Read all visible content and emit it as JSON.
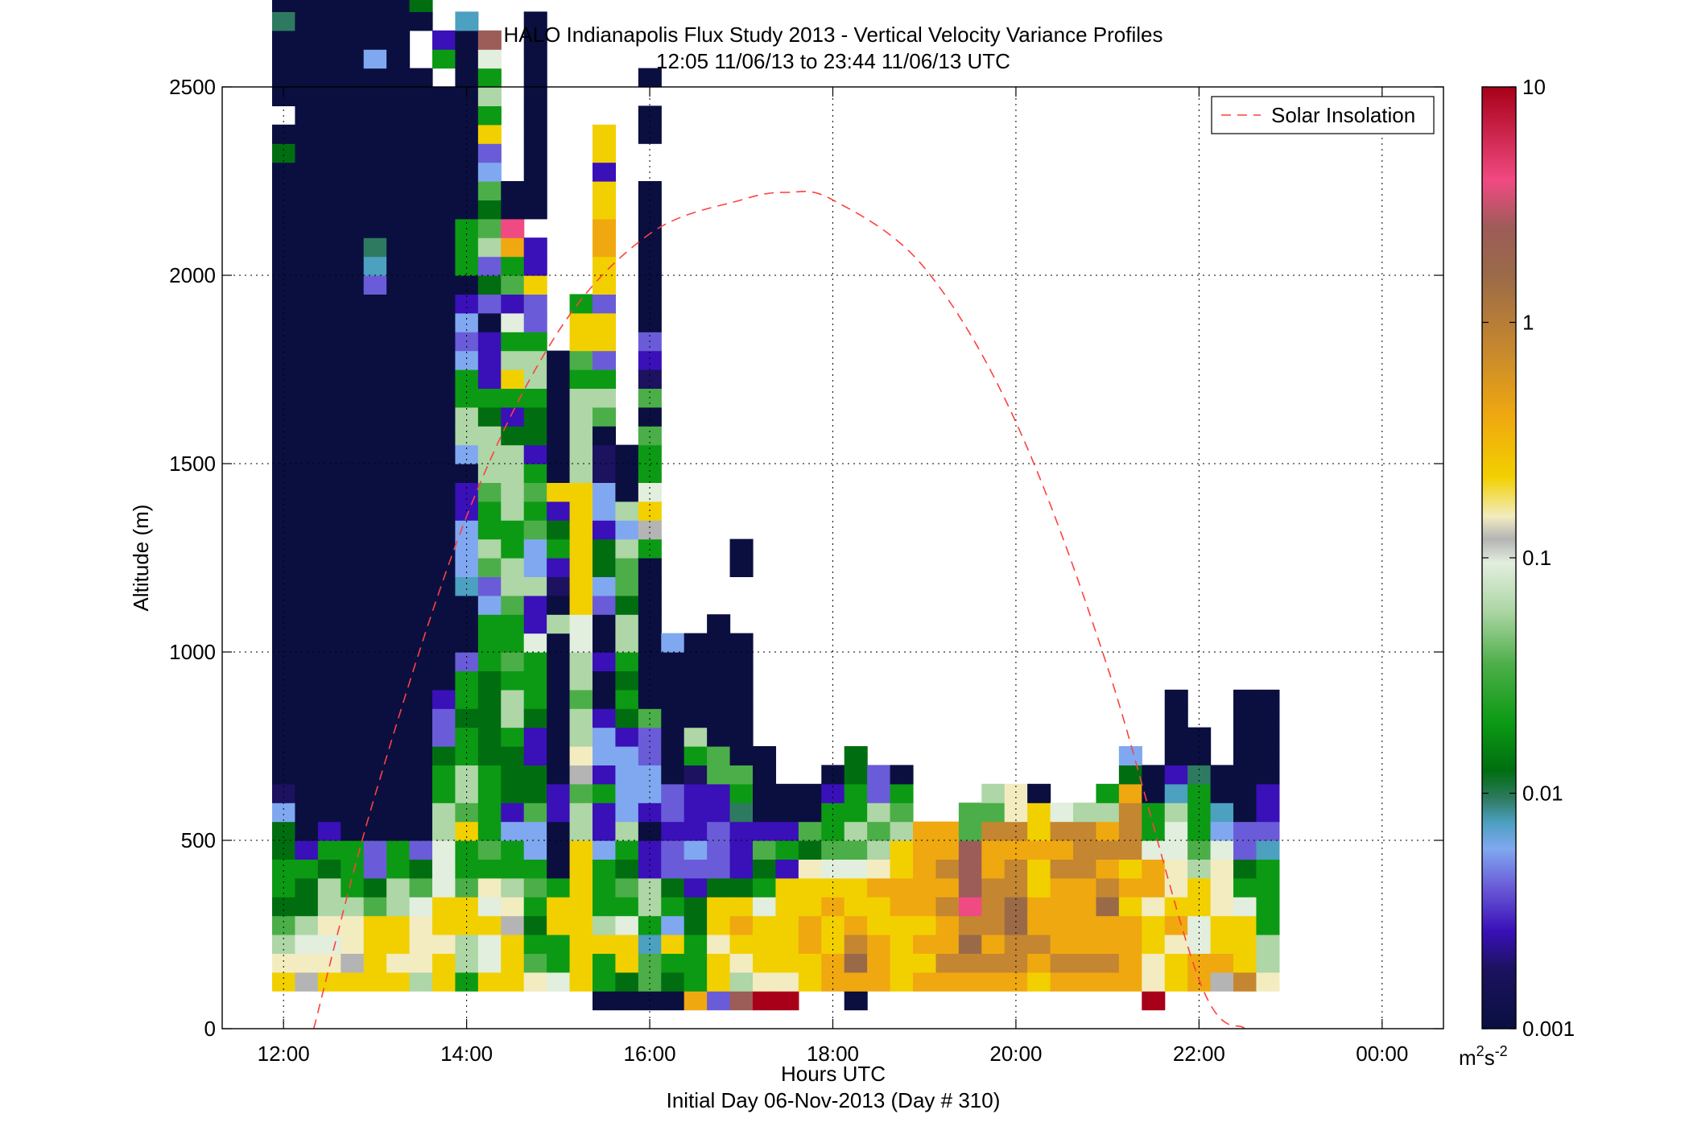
{
  "chart_data": {
    "type": "heatmap",
    "title": "HALO Indianapolis Flux Study 2013 - Vertical Velocity Variance Profiles",
    "subtitle": "12:05 11/06/13 to 23:44 11/06/13  UTC",
    "xlabel": "Hours UTC",
    "xlabel_sub": "Initial Day 06-Nov-2013 (Day # 310)",
    "ylabel": "Altitude (m)",
    "x_range_hours": [
      11.33,
      24.67
    ],
    "ylim": [
      0,
      2500
    ],
    "x_ticks": [
      {
        "v": 12,
        "label": "12:00"
      },
      {
        "v": 14,
        "label": "14:00"
      },
      {
        "v": 16,
        "label": "16:00"
      },
      {
        "v": 18,
        "label": "18:00"
      },
      {
        "v": 20,
        "label": "20:00"
      },
      {
        "v": 22,
        "label": "22:00"
      },
      {
        "v": 24,
        "label": "00:00"
      }
    ],
    "y_ticks": [
      {
        "v": 0,
        "label": "0"
      },
      {
        "v": 500,
        "label": "500"
      },
      {
        "v": 1000,
        "label": "1000"
      },
      {
        "v": 1500,
        "label": "1500"
      },
      {
        "v": 2000,
        "label": "2000"
      },
      {
        "v": 2500,
        "label": "2500"
      }
    ],
    "grid": true,
    "legend": {
      "placement": "top-right",
      "entries": [
        {
          "label": "Solar Insolation",
          "color": "#ff4040",
          "style": "dashed"
        }
      ]
    },
    "colorbar": {
      "scale": "log",
      "range": [
        0.001,
        10
      ],
      "ticks": [
        {
          "v": 0.001,
          "label": "0.001"
        },
        {
          "v": 0.01,
          "label": "0.01"
        },
        {
          "v": 0.1,
          "label": "0.1"
        },
        {
          "v": 1,
          "label": "1"
        },
        {
          "v": 10,
          "label": "10"
        }
      ],
      "unit_base": "m",
      "unit_sup1": "2",
      "unit_mid": "s",
      "unit_sup2": "-2",
      "stops": [
        {
          "v": 0.001,
          "color": "#0a0f40"
        },
        {
          "v": 0.0018,
          "color": "#1c1260"
        },
        {
          "v": 0.0026,
          "color": "#3a10b8"
        },
        {
          "v": 0.004,
          "color": "#6a5cd8"
        },
        {
          "v": 0.0058,
          "color": "#80a8f0"
        },
        {
          "v": 0.0075,
          "color": "#4ca0c0"
        },
        {
          "v": 0.0095,
          "color": "#2e7a60"
        },
        {
          "v": 0.0125,
          "color": "#006e10"
        },
        {
          "v": 0.02,
          "color": "#0c9a14"
        },
        {
          "v": 0.035,
          "color": "#4cae48"
        },
        {
          "v": 0.06,
          "color": "#aed6a6"
        },
        {
          "v": 0.095,
          "color": "#e2eede"
        },
        {
          "v": 0.12,
          "color": "#b4b4b4"
        },
        {
          "v": 0.15,
          "color": "#f2ecc0"
        },
        {
          "v": 0.22,
          "color": "#f2d000"
        },
        {
          "v": 0.4,
          "color": "#f0a810"
        },
        {
          "v": 0.8,
          "color": "#c48630"
        },
        {
          "v": 1.6,
          "color": "#9a6a48"
        },
        {
          "v": 2.5,
          "color": "#9c5c58"
        },
        {
          "v": 4,
          "color": "#f04a82"
        },
        {
          "v": 10,
          "color": "#a80018"
        }
      ]
    },
    "solar_insolation": {
      "name": "Solar Insolation",
      "x": [
        12.33,
        13.0,
        14.0,
        15.0,
        16.0,
        17.0,
        17.5,
        18.0,
        19.0,
        20.0,
        21.0,
        22.0,
        22.5
      ],
      "y": [
        0,
        620,
        1360,
        1850,
        2110,
        2200,
        2220,
        2200,
        2020,
        1610,
        960,
        130,
        0
      ]
    },
    "cell_height_m": 50,
    "palette": {
      "N": 0.001,
      "D": 0.0018,
      "P": 0.0026,
      "V": 0.004,
      "L": 0.0058,
      "C": 0.0075,
      "T": 0.0095,
      "E": 0.0125,
      "G": 0.02,
      "M": 0.035,
      "S": 0.06,
      "W": 0.095,
      "A": 0.12,
      "Q": 0.15,
      "Y": 0.22,
      "O": 0.4,
      "K": 0.8,
      "B": 1.6,
      "R": 2.5,
      "H": 4,
      "Z": 10
    },
    "series": [
      {
        "t": 12.0,
        "base": 100,
        "cells": "YQSMEGGEELDNNNNNNNNNNNNNNNNNNNNNNNNNNNNNNNNNEN.NNNNTNN"
      },
      {
        "t": 12.25,
        "base": 100,
        "cells": "AQWSEEGPNNNNNNNNNNNNNNNNNNNNNNNNNNNNNNNNNNNNNNNNNNNNNNNN"
      },
      {
        "t": 12.5,
        "base": 100,
        "cells": "YQWQSSEGPNNNNNNNNNNNNNNNNNNNNNNNNNNNNNNNNNNNNNNNNNNNNNNN"
      },
      {
        "t": 12.75,
        "base": 100,
        "cells": "YAQQSGGGNNNNNNNNNNNNNNNNNNNNNNNNNNNNNNNNNNNNNNNNNNNNNNVN"
      },
      {
        "t": 13.0,
        "base": 100,
        "cells": "YYYYMEVVNNNNNNNNNNNNNNNNNNNNNNNNNNNNNVCTNNNNNNNNNLNNNNEN"
      },
      {
        "t": 13.25,
        "base": 100,
        "cells": "YQYYSSGGNNNNNNNNNNNNNNNNNNNNNNNNNNNNNNNNNNNNNNNNNNNNNNNV"
      },
      {
        "t": 13.5,
        "base": 100,
        "cells": "SQQQWMEVNNNNNNNNNNNNNNNNNNNNNNNNNNNNNNNNNNNNNNNNN..NEN."
      },
      {
        "t": 13.75,
        "base": 100,
        "cells": "YYQYYWWWSSGGEVVPNNNNNNNNNNNNNNNNNNNNNNNNNNNNNNNN.GP"
      },
      {
        "t": 14.0,
        "base": 100,
        "cells": "GSSYYMGGYMSSGGEGGVNNNCLLLPPNLSSGGLVLPNGGGNNNNNNNNNNC"
      },
      {
        "t": 14.25,
        "base": 100,
        "cells": "YWWYWQGMGGGGEEEEEGGGLVMSGGMSSSEGPPPNVEVSMEMLVYGSGWR"
      },
      {
        "t": 14.5,
        "base": 100,
        "cells": "YYYAQSGGLPEEEGSSGMGGMSSGGSSSSEPGYSGWPMGOHNN"
      },
      {
        "t": 14.75,
        "base": 100,
        "cells": "QMGEGMGLLMEEPPEGGGWPPSLLMGMGPEEGSSGVVYPP.NNNNNNNNNNN"
      },
      {
        "t": 15.0,
        "base": 100,
        "cells": "WGGYYGNNNPPNNNNNNNNSNDPGEPYNNNNNNN"
      },
      {
        "t": 15.25,
        "base": 100,
        "cells": "YYYYYYYYSSMAQSSMSSWWYYYYYYYSSSSSGMYYG"
      },
      {
        "t": 15.5,
        "base": 50,
        "cells": "NGGYSGGGLPPGPLLPNNPNNVLEEPLLDDNMSGVYYVYYOOYYPYY"
      },
      {
        "t": 15.75,
        "base": 50,
        "cells": "NEYYWGMEGSLLLLPEGEGSSEMMSLSNNN"
      },
      {
        "t": 16.0,
        "base": 50,
        "cells": "NMMCGSSPPNPLLVVMNNNNNNNNGAYWGGMNMDPVNNNNNNNN..NN.N"
      },
      {
        "t": 16.25,
        "base": 50,
        "cells": "NEGYLGEVVPVVNNNNNNNL"
      },
      {
        "t": 16.5,
        "base": 50,
        "cells": "OGGGEEPVLPPPDGSNNNNN"
      },
      {
        "t": 16.75,
        "base": 50,
        "cells": "VYYQYYEVVVPPMMNNNNNNN"
      },
      {
        "t": 17.0,
        "base": 50,
        "cells": "RSQYOYEPPPTGMNNNNNNN...NN"
      },
      {
        "t": 17.25,
        "base": 50,
        "cells": "ZQYYYWGEMPNNNN"
      },
      {
        "t": 17.5,
        "base": 50,
        "cells": "ZQYYYYYPGPNN"
      },
      {
        "t": 17.75,
        "base": 100,
        "cells": "YYOOYYQEMNN"
      },
      {
        "t": 18.0,
        "base": 100,
        "cells": "OOYYOYWMGGPN"
      },
      {
        "t": 18.25,
        "base": 50,
        "cells": "NOBKOYYWMSGGEE"
      },
      {
        "t": 18.5,
        "base": 100,
        "cells": "OOOYYOQSMSVV"
      },
      {
        "t": 18.75,
        "base": 100,
        "cells": "YYYYOOYYSMGN"
      },
      {
        "t": 19.0,
        "base": 100,
        "cells": "OYOYOOOOO"
      },
      {
        "t": 19.25,
        "base": 100,
        "cells": "OKOOKOKOO"
      },
      {
        "t": 19.5,
        "base": 100,
        "cells": "OKBKHRRRMM"
      },
      {
        "t": 19.75,
        "base": 100,
        "cells": "OKOKKKOOKMS"
      },
      {
        "t": 20.0,
        "base": 100,
        "cells": "OKKBBKKOKQQ"
      },
      {
        "t": 20.25,
        "base": 100,
        "cells": "YOKOOYYOYYN"
      },
      {
        "t": 20.5,
        "base": 100,
        "cells": "OKOOOOKOKW"
      },
      {
        "t": 20.75,
        "base": 100,
        "cells": "OKOOOOKKKS"
      },
      {
        "t": 21.0,
        "base": 100,
        "cells": "OKOOBKOKOSG"
      },
      {
        "t": 21.25,
        "base": 100,
        "cells": "OOOOYOYKKKOEL"
      },
      {
        "t": 21.5,
        "base": 50,
        "cells": "ZQQYYQOOWGGNN"
      },
      {
        "t": 21.75,
        "base": 100,
        "cells": "YYQOYQQWWSCPNNNN"
      },
      {
        "t": 22.0,
        "base": 100,
        "cells": "OOWWYYSMGGGTNN"
      },
      {
        "t": 22.25,
        "base": 100,
        "cells": "AOYYQQQWLCNN"
      },
      {
        "t": 22.5,
        "base": 100,
        "cells": "KYYYWGEVVNNNNNNN"
      },
      {
        "t": 22.75,
        "base": 100,
        "cells": "QSSGGGGCVPPNNNNN"
      }
    ]
  }
}
